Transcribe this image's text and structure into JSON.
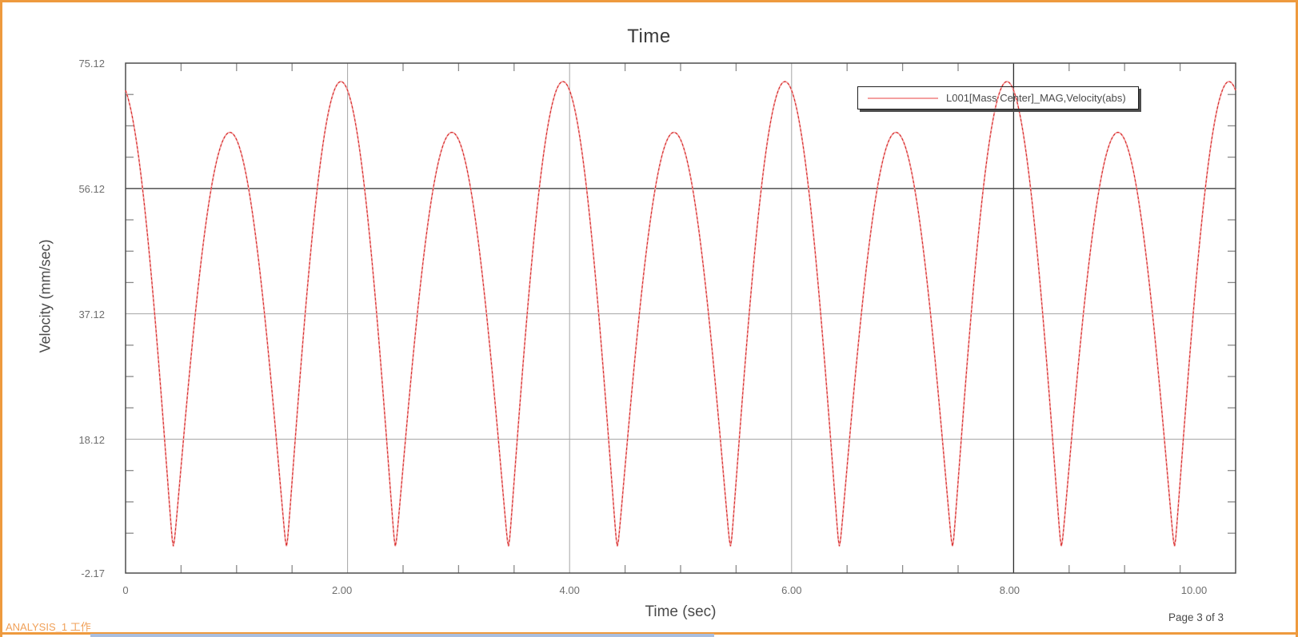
{
  "page": {
    "border_color": "#ee9a3e",
    "background": "#ffffff",
    "bottom_bar_color": "#a9bedf"
  },
  "header": {
    "title": "Time"
  },
  "footer": {
    "left_text": "ANALYSIS_1 工作",
    "right_text": "Page 3 of 3"
  },
  "colors": {
    "curve_red": "#d62828",
    "curve_light": "#f2a2a2",
    "grid_gray": "#a6a6a6",
    "grid_dark": "#2e2e2e",
    "axis_border": "#4d4d4d",
    "tick_gray": "#8a8a8a",
    "title_text": "#3a3a3a",
    "label_text": "#4a4a4a",
    "tick_text": "#6e6e6e",
    "footer_orange": "#f0a058"
  },
  "chart_data": {
    "type": "line",
    "title": "Time",
    "xlabel": "Time (sec)",
    "ylabel": "Velocity (mm/sec)",
    "xlim": [
      0,
      10
    ],
    "ylim": [
      -2.17,
      75.12
    ],
    "x_ticks": [
      {
        "label": "0",
        "value": 0,
        "label_shift": 0
      },
      {
        "label": "2.00",
        "value": 2,
        "label_shift": -7
      },
      {
        "label": "4.00",
        "value": 4,
        "label_shift": 0
      },
      {
        "label": "6.00",
        "value": 6,
        "label_shift": 0
      },
      {
        "label": "8.00",
        "value": 8,
        "label_shift": -5
      },
      {
        "label": "10.00",
        "value": 10,
        "label_shift": -52
      }
    ],
    "y_ticks": [
      {
        "label": "75.12",
        "value": 75.12
      },
      {
        "label": "56.12",
        "value": 56.12
      },
      {
        "label": "37.12",
        "value": 37.12
      },
      {
        "label": "18.12",
        "value": 18.12
      },
      {
        "label": "-2.17",
        "value": -2.17
      }
    ],
    "x_minor_step": 0.5,
    "y_minor_step": 4.75,
    "x_gridlines": [
      2,
      4,
      6
    ],
    "x_gridlines_dark": [
      8
    ],
    "y_gridlines": [
      37.12,
      18.12
    ],
    "y_gridlines_dark": [
      56.12
    ],
    "grid": true,
    "legend": {
      "position": "top-right",
      "label": "L001[Mass Center]_MAG,Velocity(abs)"
    },
    "series": [
      {
        "name": "L001[Mass Center]_MAG,Velocity(abs)",
        "color": "#d62828",
        "color_light": "#f2a2a2",
        "waveform": {
          "description": "rectified oscillation, alternating lobe amplitudes, period 2 s",
          "zero_start": -0.55,
          "lobe_widths": [
            0.98,
            1.02
          ],
          "amplitudes_alternating": [
            72.3,
            64.6
          ],
          "valley_floor": 1.9
        },
        "endpoints": [
          {
            "t": 0,
            "v": 71.0
          },
          {
            "t": 10,
            "v": 71.0
          }
        ],
        "peaks": [
          {
            "t": 0.94,
            "v": 64.6
          },
          {
            "t": 1.94,
            "v": 72.3
          },
          {
            "t": 2.94,
            "v": 64.6
          },
          {
            "t": 3.94,
            "v": 72.3
          },
          {
            "t": 4.94,
            "v": 64.6
          },
          {
            "t": 5.94,
            "v": 72.3
          },
          {
            "t": 6.94,
            "v": 64.6
          },
          {
            "t": 7.94,
            "v": 72.3
          },
          {
            "t": 8.94,
            "v": 64.6
          },
          {
            "t": 9.94,
            "v": 72.3
          }
        ],
        "valleys": [
          {
            "t": 0.43,
            "v": 1.9
          },
          {
            "t": 1.45,
            "v": 1.9
          },
          {
            "t": 2.43,
            "v": 1.9
          },
          {
            "t": 3.45,
            "v": 1.9
          },
          {
            "t": 4.43,
            "v": 1.9
          },
          {
            "t": 5.45,
            "v": 1.9
          },
          {
            "t": 6.43,
            "v": 1.9
          },
          {
            "t": 7.45,
            "v": 1.9
          },
          {
            "t": 8.43,
            "v": 1.9
          },
          {
            "t": 9.45,
            "v": 1.9
          }
        ]
      }
    ]
  }
}
